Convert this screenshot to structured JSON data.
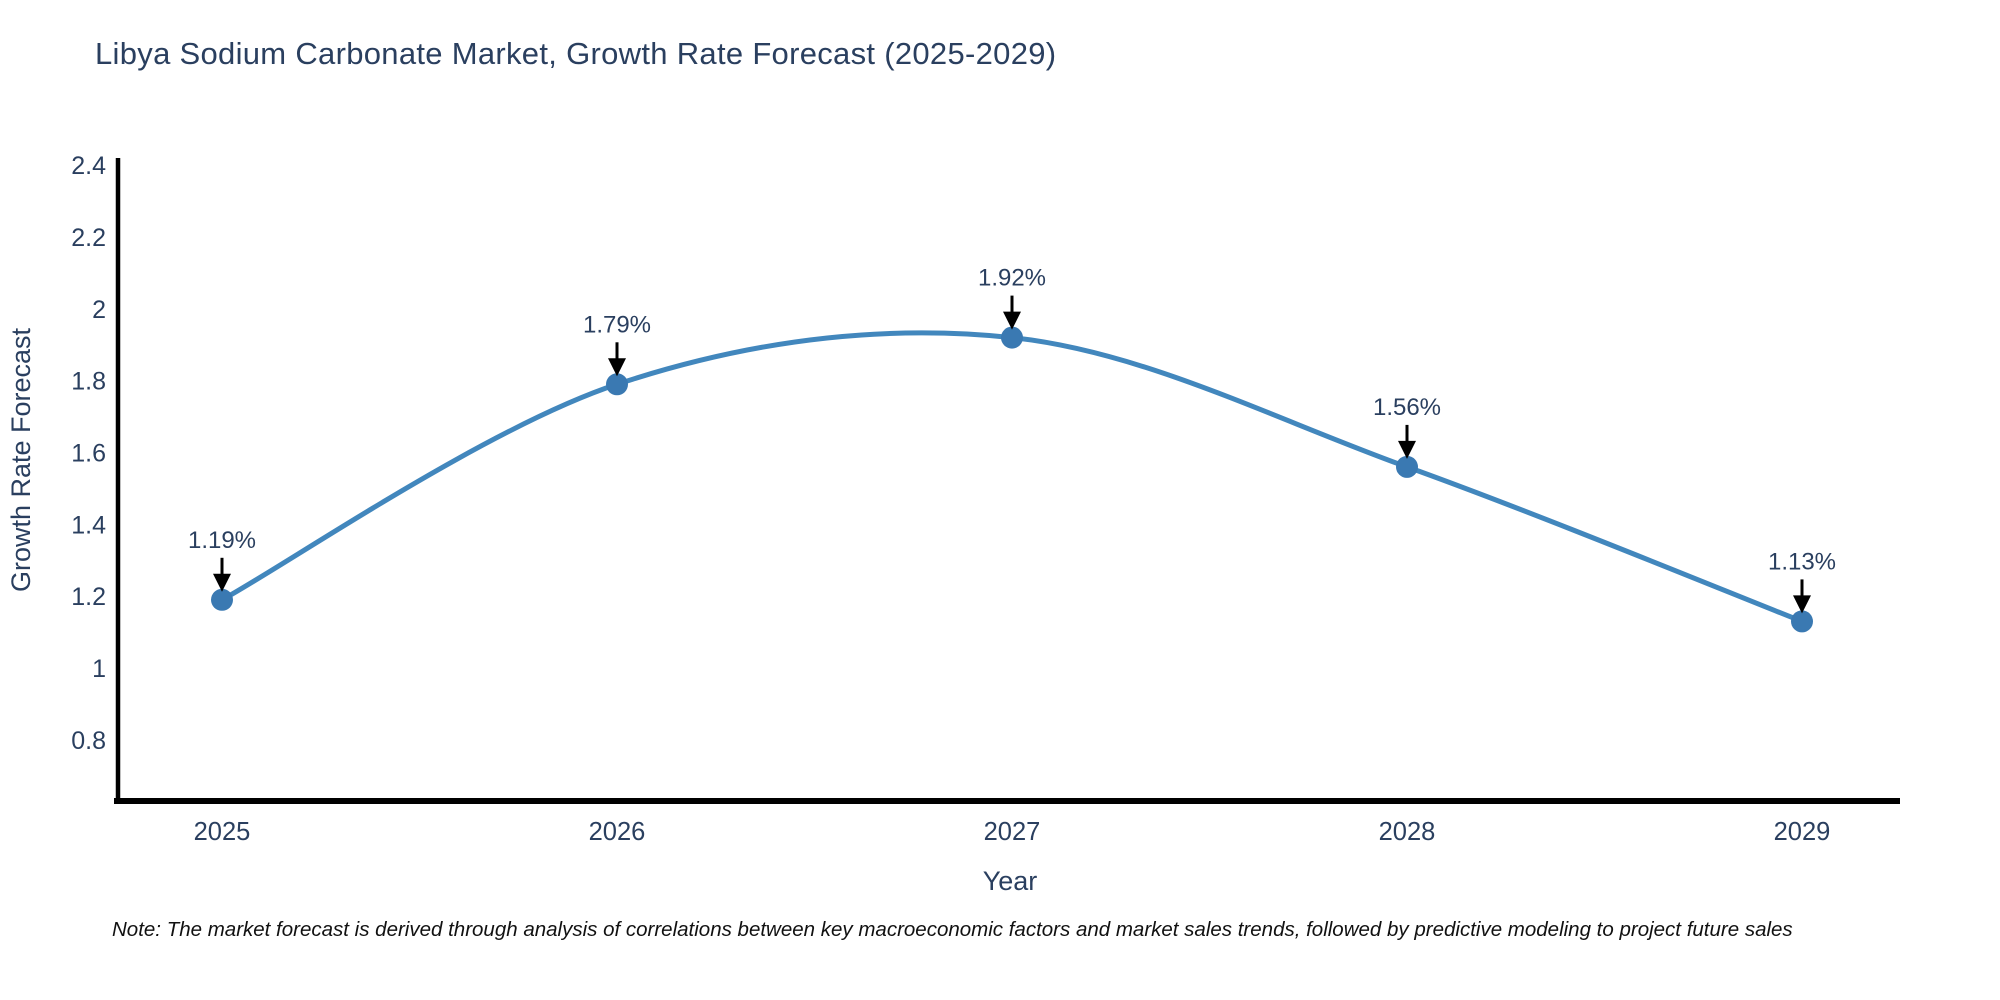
{
  "chart_data": {
    "type": "line",
    "line_shape": "spline",
    "title": "Libya Sodium Carbonate Market, Growth Rate Forecast (2025-2029)",
    "xlabel": "Year",
    "ylabel": "Growth Rate Forecast",
    "categories": [
      "2025",
      "2026",
      "2027",
      "2028",
      "2029"
    ],
    "values": [
      1.19,
      1.79,
      1.92,
      1.56,
      1.13
    ],
    "point_labels": [
      "1.19%",
      "1.79%",
      "1.92%",
      "1.56%",
      "1.13%"
    ],
    "yticks": [
      0.8,
      1,
      1.2,
      1.4,
      1.6,
      1.8,
      2,
      2.2,
      2.4
    ],
    "ytick_labels": [
      "0.8",
      "1",
      "1.2",
      "1.4",
      "1.6",
      "1.8",
      "2",
      "2.2",
      "2.4"
    ],
    "ylim": [
      0.63,
      2.42
    ],
    "grid": false,
    "legend": false,
    "colors": {
      "line": "#4287bd",
      "marker": "#3a79b2",
      "axis": "#000000",
      "text": "#2a3f5f",
      "annotation_arrow": "#000000"
    }
  },
  "note": {
    "text": "Note: The market forecast is derived through analysis of correlations between key macroeconomic factors and market sales trends, followed by predictive modeling to project future sales"
  }
}
